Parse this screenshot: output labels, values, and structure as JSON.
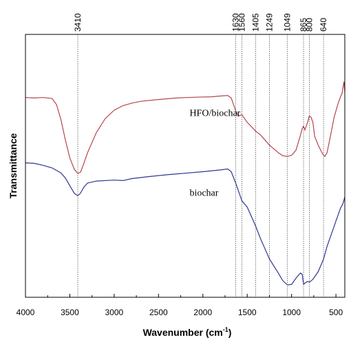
{
  "chart_data": {
    "type": "line",
    "xlabel": "Wavenumber (cm",
    "xlabel_sup": "-1",
    "xlabel_tail": ")",
    "ylabel": "Transmittance",
    "xlim": [
      4000,
      400
    ],
    "x_ticks": [
      "4000",
      "3500",
      "3000",
      "2500",
      "2000",
      "1500",
      "1000",
      "500"
    ],
    "x_tick_values": [
      4000,
      3500,
      3000,
      2500,
      2000,
      1500,
      1000,
      500
    ],
    "ylim": [
      0,
      100
    ],
    "grid": false,
    "legend": "none",
    "peaks": [
      "3410",
      "1630",
      "1560",
      "1405",
      "1249",
      "1049",
      "865",
      "800",
      "640"
    ],
    "peak_values": [
      3410,
      1630,
      1560,
      1405,
      1249,
      1049,
      865,
      800,
      640
    ],
    "series": [
      {
        "name": "HFO/biochar",
        "color": "#b5444a",
        "points": [
          [
            4000,
            77.8
          ],
          [
            3900,
            77.6
          ],
          [
            3800,
            77.8
          ],
          [
            3700,
            77.4
          ],
          [
            3650,
            75.0
          ],
          [
            3600,
            69.0
          ],
          [
            3550,
            61.0
          ],
          [
            3500,
            54.0
          ],
          [
            3450,
            49.5
          ],
          [
            3410,
            47.8
          ],
          [
            3380,
            48.3
          ],
          [
            3350,
            51.0
          ],
          [
            3300,
            56.0
          ],
          [
            3200,
            64.0
          ],
          [
            3100,
            69.5
          ],
          [
            3000,
            72.8
          ],
          [
            2900,
            74.6
          ],
          [
            2800,
            75.6
          ],
          [
            2700,
            76.3
          ],
          [
            2500,
            77.0
          ],
          [
            2300,
            77.6
          ],
          [
            2100,
            77.9
          ],
          [
            1900,
            78.1
          ],
          [
            1800,
            78.4
          ],
          [
            1720,
            78.6
          ],
          [
            1680,
            77.6
          ],
          [
            1630,
            72.5
          ],
          [
            1600,
            70.5
          ],
          [
            1560,
            71.0
          ],
          [
            1500,
            68.0
          ],
          [
            1405,
            64.5
          ],
          [
            1350,
            63.0
          ],
          [
            1249,
            59.0
          ],
          [
            1150,
            56.0
          ],
          [
            1100,
            54.8
          ],
          [
            1049,
            54.5
          ],
          [
            1000,
            55.0
          ],
          [
            950,
            57.0
          ],
          [
            900,
            63.0
          ],
          [
            880,
            65.5
          ],
          [
            865,
            66.5
          ],
          [
            850,
            65.0
          ],
          [
            820,
            68.0
          ],
          [
            800,
            70.5
          ],
          [
            780,
            70.0
          ],
          [
            760,
            68.0
          ],
          [
            740,
            62.5
          ],
          [
            700,
            59.0
          ],
          [
            650,
            55.5
          ],
          [
            625,
            54.5
          ],
          [
            600,
            56.0
          ],
          [
            560,
            63.0
          ],
          [
            520,
            70.0
          ],
          [
            480,
            75.0
          ],
          [
            450,
            78.0
          ],
          [
            430,
            79.5
          ],
          [
            410,
            84.0
          ],
          [
            400,
            80.0
          ]
        ]
      },
      {
        "name": "biochar",
        "color": "#2e3591",
        "points": [
          [
            4000,
            52.0
          ],
          [
            3900,
            51.8
          ],
          [
            3800,
            51.0
          ],
          [
            3700,
            50.0
          ],
          [
            3600,
            48.0
          ],
          [
            3550,
            46.0
          ],
          [
            3500,
            43.0
          ],
          [
            3450,
            40.0
          ],
          [
            3410,
            39.0
          ],
          [
            3380,
            40.0
          ],
          [
            3340,
            42.5
          ],
          [
            3300,
            44.0
          ],
          [
            3200,
            44.8
          ],
          [
            3000,
            45.2
          ],
          [
            2900,
            45.0
          ],
          [
            2800,
            45.8
          ],
          [
            2600,
            46.6
          ],
          [
            2400,
            47.3
          ],
          [
            2200,
            47.9
          ],
          [
            2000,
            48.5
          ],
          [
            1800,
            49.2
          ],
          [
            1720,
            49.6
          ],
          [
            1680,
            48.5
          ],
          [
            1630,
            44.0
          ],
          [
            1600,
            41.0
          ],
          [
            1560,
            37.0
          ],
          [
            1500,
            34.5
          ],
          [
            1405,
            27.0
          ],
          [
            1350,
            22.0
          ],
          [
            1249,
            14.0
          ],
          [
            1150,
            8.5
          ],
          [
            1100,
            5.5
          ],
          [
            1049,
            3.8
          ],
          [
            1000,
            4.0
          ],
          [
            950,
            6.5
          ],
          [
            900,
            8.5
          ],
          [
            880,
            8.0
          ],
          [
            865,
            4.0
          ],
          [
            850,
            4.5
          ],
          [
            820,
            5.2
          ],
          [
            800,
            4.8
          ],
          [
            760,
            6.0
          ],
          [
            700,
            9.0
          ],
          [
            640,
            14.0
          ],
          [
            600,
            19.0
          ],
          [
            550,
            24.0
          ],
          [
            500,
            29.0
          ],
          [
            450,
            34.0
          ],
          [
            420,
            36.0
          ],
          [
            400,
            38.5
          ]
        ]
      }
    ],
    "annotations": [
      {
        "text": "HFO/biochar",
        "x": 2150,
        "y": 70.5
      },
      {
        "text": "biochar",
        "x": 2150,
        "y": 39.0
      }
    ]
  }
}
